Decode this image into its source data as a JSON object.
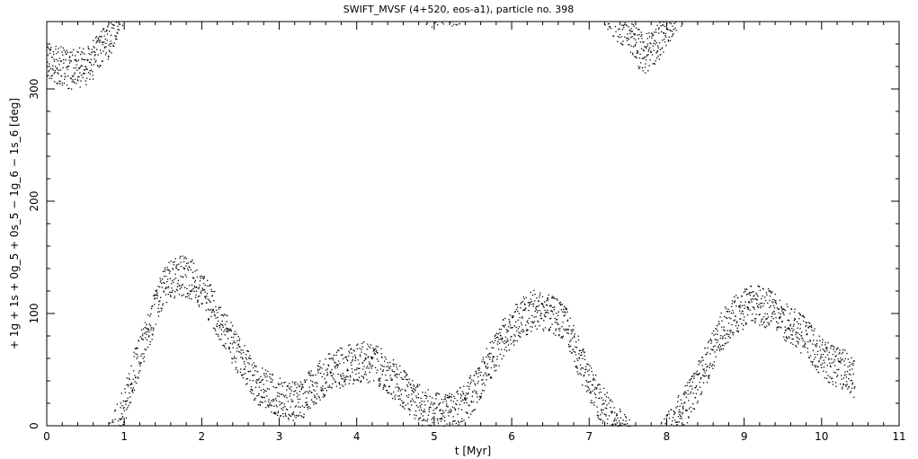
{
  "chart_data": {
    "type": "scatter",
    "title": "SWIFT_MVSF (4+520, eos-a1), particle no. 398",
    "xlabel": "t [Myr]",
    "ylabel": "+ 1g + 1s + 0g_5 + 0s_5 − 1g_6 − 1s_6 [deg]",
    "xlim": [
      0,
      11
    ],
    "ylim": [
      0,
      360
    ],
    "x_ticks": [
      "0",
      "1",
      "2",
      "3",
      "4",
      "5",
      "6",
      "7",
      "8",
      "9",
      "10",
      "11"
    ],
    "y_ticks": [
      "0",
      "100",
      "200",
      "300"
    ],
    "grid": false,
    "legend": "none",
    "point_color": "#000000",
    "series": [
      {
        "name": "",
        "trend": {
          "x": [
            0.0,
            0.1,
            0.3,
            0.5,
            0.7,
            0.85,
            0.9,
            1.0,
            1.1,
            1.3,
            1.5,
            1.7,
            1.9,
            2.1,
            2.3,
            2.5,
            2.7,
            2.9,
            3.1,
            3.3,
            3.5,
            3.7,
            3.9,
            4.1,
            4.3,
            4.5,
            4.7,
            4.9,
            5.1,
            5.3,
            5.5,
            5.7,
            5.9,
            6.1,
            6.3,
            6.5,
            6.7,
            6.9,
            7.1,
            7.3,
            7.5,
            7.7,
            7.9,
            8.1,
            8.3,
            8.5,
            8.7,
            8.9,
            9.1,
            9.3,
            9.5,
            9.7,
            9.9,
            10.1,
            10.3,
            10.42
          ],
          "y": [
            330,
            322,
            318,
            320,
            335,
            352,
            2,
            20,
            45,
            85,
            125,
            135,
            130,
            110,
            85,
            60,
            38,
            30,
            22,
            25,
            40,
            50,
            55,
            58,
            52,
            40,
            25,
            15,
            10,
            15,
            30,
            55,
            80,
            95,
            105,
            100,
            90,
            55,
            25,
            5,
            350,
            330,
            345,
            5,
            25,
            55,
            85,
            100,
            110,
            105,
            95,
            85,
            70,
            55,
            50,
            40
          ]
        },
        "spread_deg": 18,
        "sample_count": 3200
      }
    ]
  }
}
